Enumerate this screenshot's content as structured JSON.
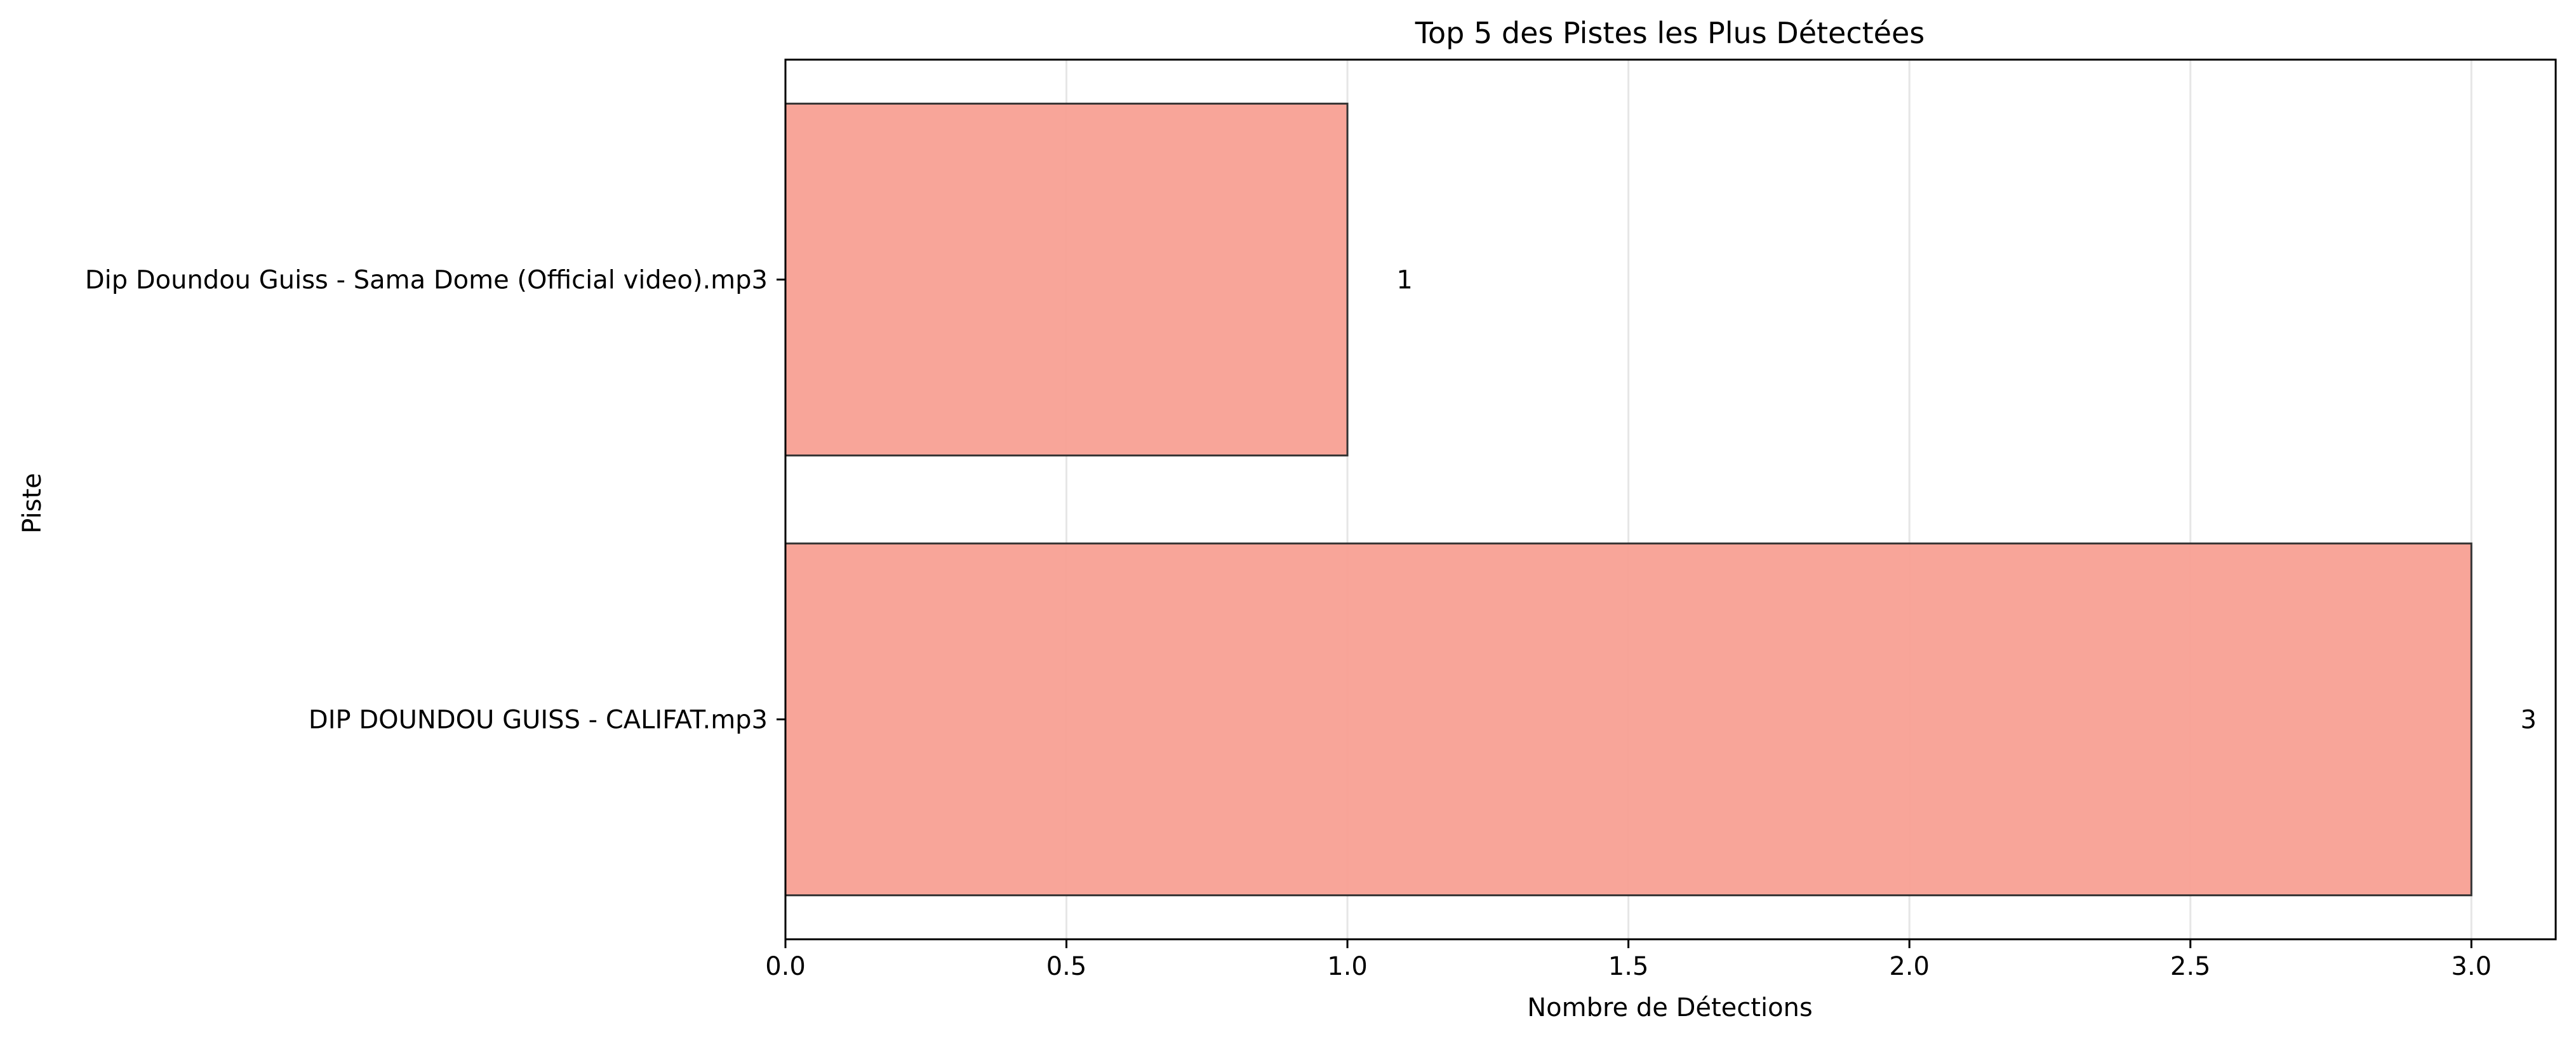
{
  "chart_data": {
    "type": "bar",
    "orientation": "horizontal",
    "title": "Top 5 des Pistes les Plus Détectées",
    "xlabel": "Nombre de Détections",
    "ylabel": "Piste",
    "categories": [
      "Dip Doundou Guiss - Sama Dome (Official video).mp3",
      "DIP DOUNDOU GUISS - CALIFAT.mp3"
    ],
    "values": [
      1,
      3
    ],
    "data_labels": [
      "1",
      "3"
    ],
    "xlim": [
      0,
      3.15
    ],
    "xticks": [
      0.0,
      0.5,
      1.0,
      1.5,
      2.0,
      2.5,
      3.0
    ],
    "xtick_labels": [
      "0.0",
      "0.5",
      "1.0",
      "1.5",
      "2.0",
      "2.5",
      "3.0"
    ],
    "grid": "x-only",
    "bar_color": "#f8a093",
    "edge_color": "#333333"
  }
}
